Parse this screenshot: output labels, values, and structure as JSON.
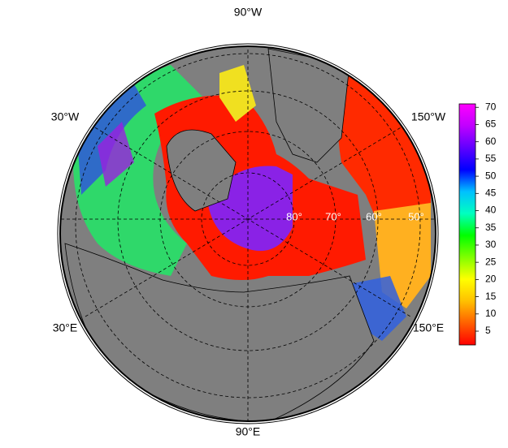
{
  "map": {
    "longitude_labels": {
      "top": "90°W",
      "upper_left": "30°W",
      "upper_right": "150°W",
      "lower_left": "30°E",
      "lower_right": "150°E",
      "bottom": "90°E"
    },
    "latitude_labels": [
      "80°",
      "70°",
      "60°",
      "50°"
    ],
    "colorbar": {
      "lim": [
        1,
        71
      ],
      "ticks": [
        5,
        10,
        15,
        20,
        25,
        30,
        35,
        40,
        45,
        50,
        55,
        60,
        65,
        70
      ],
      "colors": [
        "#ff0000",
        "#ff6000",
        "#ffc000",
        "#ffff00",
        "#80ff00",
        "#00ff00",
        "#00ffc0",
        "#00c0ff",
        "#0000ff",
        "#6000ff",
        "#c000ff",
        "#ff00ff"
      ]
    }
  }
}
